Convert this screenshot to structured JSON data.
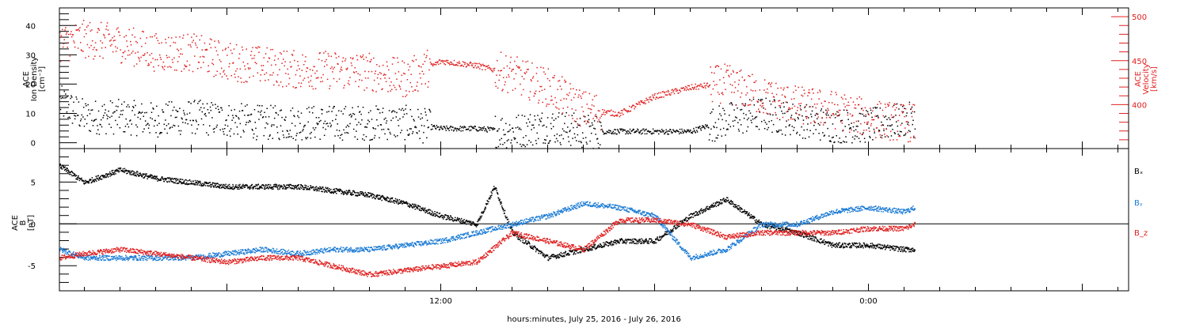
{
  "chart_data": {
    "type": "scatter",
    "xlabel": "hours:minutes, July 25, 2016 - July 26, 2016",
    "x_tick_labels": [
      "12:00",
      "0:00"
    ],
    "x_range_hours": [
      1.3,
      31.3
    ],
    "x_tick_hours": [
      12,
      24
    ],
    "panels": [
      {
        "name": "plasma",
        "ylabel_left": [
          "ACE",
          "Ion Density",
          "[cm⁻³]"
        ],
        "ylabel_right": [
          "ACE",
          "Velocity",
          "[km/s]"
        ],
        "ylim_left": [
          -2,
          46
        ],
        "ylim_right": [
          350,
          510
        ],
        "left_ticks": [
          "0",
          "10",
          "20",
          "30",
          "40"
        ],
        "right_ticks": [
          "400",
          "450",
          "500"
        ],
        "series": [
          {
            "axis": "left",
            "color": "#000000",
            "x": [
              1.3,
              2,
              3,
              4,
              5,
              6,
              7,
              8,
              9,
              10,
              11,
              12,
              13,
              14,
              15,
              16,
              17,
              18,
              19,
              20,
              21,
              22,
              23,
              24,
              25,
              25.3
            ],
            "y": [
              14,
              9,
              9,
              8,
              9,
              8,
              7,
              7,
              7,
              7,
              7,
              5,
              5,
              4,
              6,
              4,
              4,
              4,
              4,
              8,
              10,
              8,
              6,
              6,
              8,
              8
            ]
          },
          {
            "axis": "right",
            "color": "#e02020",
            "x": [
              1.3,
              2,
              3,
              4,
              5,
              6,
              7,
              8,
              9,
              10,
              11,
              12,
              13,
              14,
              15,
              16,
              17,
              18,
              19,
              20,
              21,
              22,
              23,
              24,
              25,
              25.3
            ],
            "y": [
              470,
              475,
              470,
              460,
              460,
              450,
              445,
              440,
              440,
              438,
              430,
              450,
              445,
              435,
              420,
              395,
              390,
              410,
              420,
              425,
              410,
              400,
              395,
              385,
              380,
              380
            ]
          }
        ]
      },
      {
        "name": "magnetic",
        "ylabel_left": [
          "ACE",
          "B",
          "[nT]"
        ],
        "ylim": [
          -8,
          9
        ],
        "left_ticks": [
          "-5",
          "0",
          "5"
        ],
        "series": [
          {
            "name": "Bx",
            "color": "#000000",
            "x": [
              1.3,
              2,
              3,
              4,
              5,
              6,
              7,
              8,
              9,
              10,
              11,
              12,
              13,
              13.5,
              14,
              15,
              16,
              17,
              18,
              19,
              20,
              21,
              22,
              23,
              24,
              25,
              25.3
            ],
            "y": [
              7,
              5,
              6.5,
              5.5,
              5,
              4.5,
              4.5,
              4.5,
              4,
              3.5,
              2.5,
              1,
              0,
              4.5,
              -1,
              -4,
              -3,
              -2,
              -2,
              1,
              3,
              0,
              -1,
              -2.5,
              -2.5,
              -3,
              -3
            ]
          },
          {
            "name": "By",
            "color": "#1a7ad4",
            "x": [
              1.3,
              2,
              3,
              4,
              5,
              6,
              7,
              8,
              9,
              10,
              11,
              12,
              13,
              14,
              15,
              16,
              17,
              18,
              19,
              20,
              21,
              22,
              23,
              24,
              25,
              25.3
            ],
            "y": [
              -3,
              -4,
              -4,
              -4,
              -4,
              -3.5,
              -3,
              -3.5,
              -3,
              -3,
              -2.5,
              -2,
              -1,
              0,
              1,
              2.5,
              2,
              1,
              -4,
              -3,
              0,
              0,
              1.5,
              2,
              1.5,
              2
            ]
          },
          {
            "name": "Bz",
            "color": "#e02020",
            "x": [
              1.3,
              2,
              3,
              4,
              5,
              6,
              7,
              8,
              9,
              10,
              11,
              12,
              13,
              14,
              15,
              16,
              17,
              18,
              19,
              20,
              21,
              22,
              23,
              24,
              25,
              25.3
            ],
            "y": [
              -4,
              -3.5,
              -3,
              -3.5,
              -4,
              -4.5,
              -4,
              -4,
              -5,
              -6,
              -5.5,
              -5,
              -4.5,
              -1,
              -2,
              -3,
              0.5,
              0.5,
              0,
              -1.5,
              -1,
              -1,
              -1,
              -0.5,
              -0.5,
              0
            ]
          }
        ],
        "legend_labels": [
          "Bₓ",
          "Bᵧ",
          "B_z"
        ]
      }
    ]
  }
}
